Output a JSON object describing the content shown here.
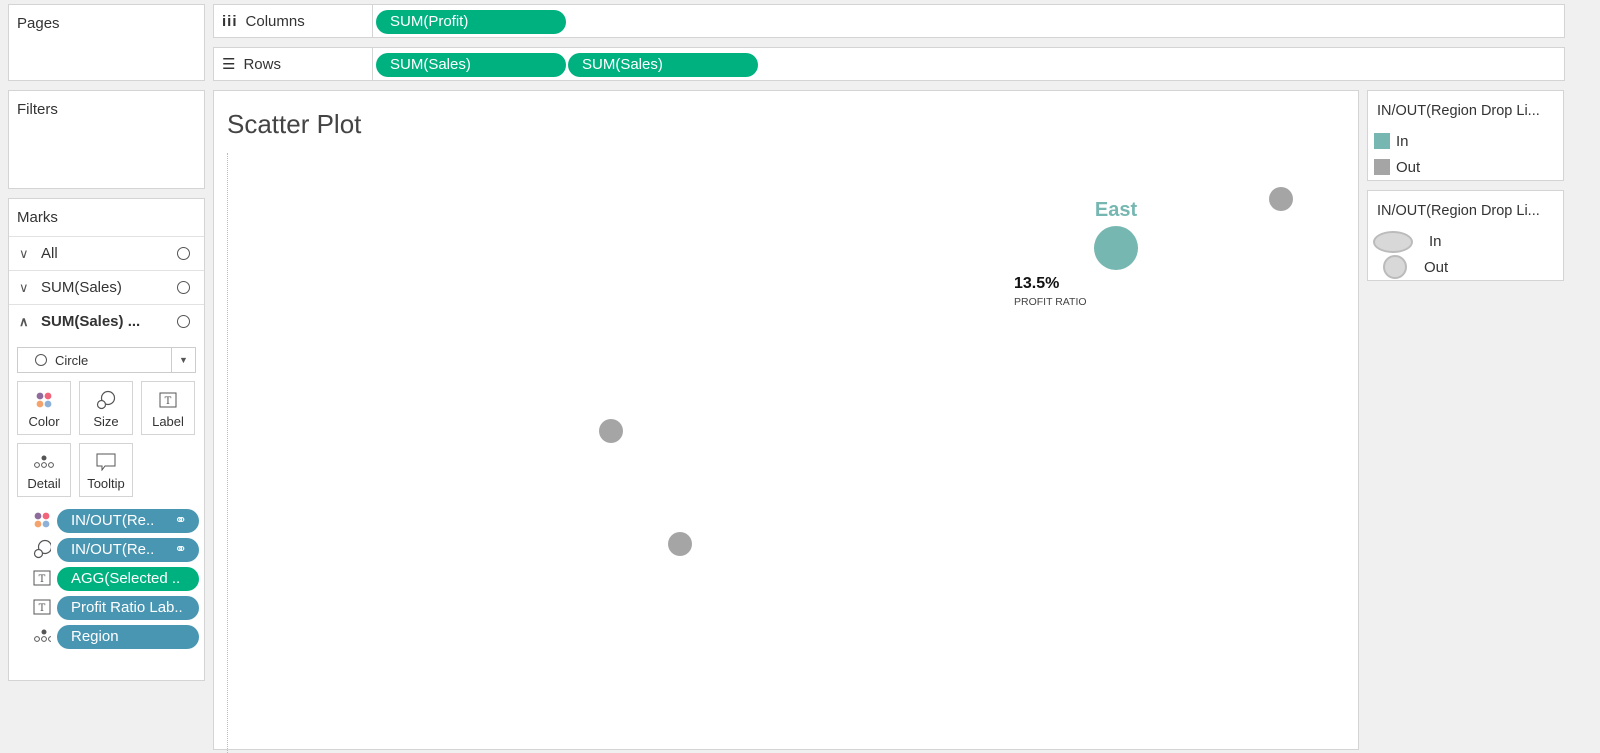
{
  "pages": {
    "title": "Pages"
  },
  "filters": {
    "title": "Filters"
  },
  "shelves": {
    "columns": {
      "label": "Columns",
      "pills": [
        "SUM(Profit)"
      ]
    },
    "rows": {
      "label": "Rows",
      "pills": [
        "SUM(Sales)",
        "SUM(Sales)"
      ]
    }
  },
  "marks": {
    "title": "Marks",
    "cards": [
      "All",
      "SUM(Sales)",
      "SUM(Sales) ..."
    ],
    "mark_type": "Circle",
    "buttons": [
      "Color",
      "Size",
      "Label",
      "Detail",
      "Tooltip"
    ],
    "pills": [
      {
        "icon": "color-icon",
        "label": "IN/OUT(Re..",
        "type": "dimension"
      },
      {
        "icon": "size-icon",
        "label": "IN/OUT(Re..",
        "type": "dimension"
      },
      {
        "icon": "label-icon",
        "label": "AGG(Selected ..",
        "type": "measure"
      },
      {
        "icon": "label-icon",
        "label": "Profit Ratio Lab..",
        "type": "dimension"
      },
      {
        "icon": "detail-icon",
        "label": "Region",
        "type": "dimension"
      }
    ]
  },
  "viz": {
    "title": "Scatter Plot",
    "marks": [
      {
        "status": "Out"
      },
      {
        "status": "In",
        "label": "East",
        "profit_ratio": "13.5%",
        "profit_ratio_caption": "PROFIT RATIO"
      },
      {
        "status": "Out"
      },
      {
        "status": "Out"
      }
    ]
  },
  "legends": [
    {
      "title": "IN/OUT(Region Drop Li...",
      "items": [
        "In",
        "Out"
      ],
      "kind": "color"
    },
    {
      "title": "IN/OUT(Region Drop Li...",
      "items": [
        "In",
        "Out"
      ],
      "kind": "size"
    }
  ],
  "colors": {
    "in": "#76b7b2",
    "out": "#a5a5a5",
    "measure_pill": "#00b180",
    "dimension_pill": "#4996b2"
  }
}
